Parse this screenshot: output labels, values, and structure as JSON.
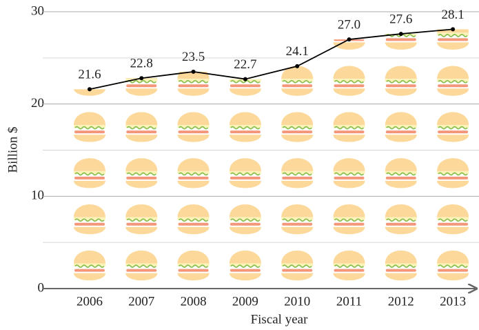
{
  "chart_data": {
    "type": "line",
    "x_label": "Fiscal year",
    "y_label": "Billion $",
    "categories": [
      "2006",
      "2007",
      "2008",
      "2009",
      "2010",
      "2011",
      "2012",
      "2013"
    ],
    "values": [
      21.6,
      22.8,
      23.5,
      22.7,
      24.1,
      27.0,
      27.6,
      28.1
    ],
    "value_labels": [
      "21.6",
      "22.8",
      "23.5",
      "22.7",
      "24.1",
      "27.0",
      "27.6",
      "28.1"
    ],
    "color": "#000000",
    "ylim": [
      0,
      30
    ],
    "yticks": [
      0,
      10,
      20,
      30
    ],
    "minor_grid": [
      5,
      15,
      25
    ],
    "grid": true
  }
}
